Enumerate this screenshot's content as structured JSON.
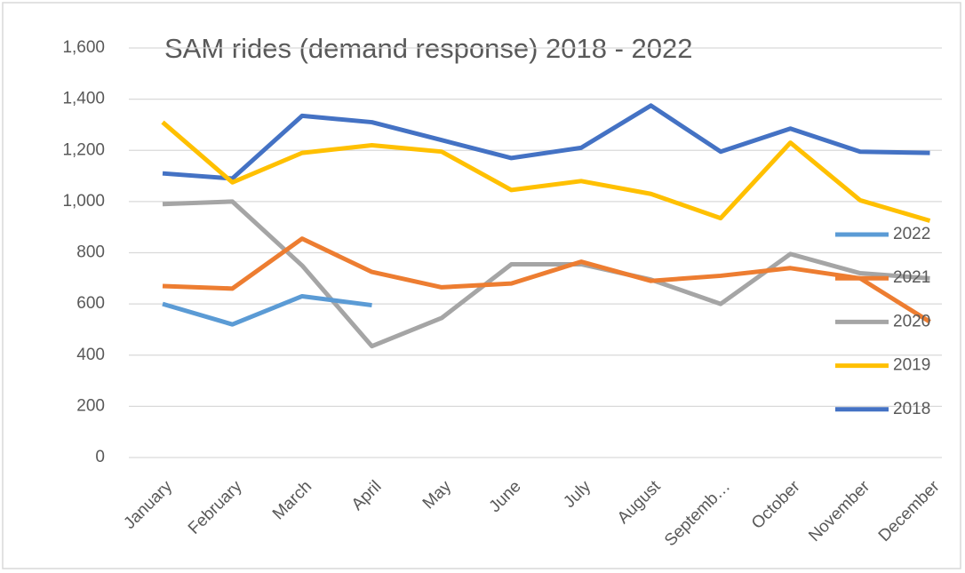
{
  "chart_data": {
    "type": "line",
    "title": "SAM rides (demand response)  2018 - 2022",
    "categories": [
      "January",
      "February",
      "March",
      "April",
      "May",
      "June",
      "July",
      "August",
      "Septemb…",
      "October",
      "November",
      "December"
    ],
    "series": [
      {
        "name": "2022",
        "color": "#5b9bd5",
        "values": [
          600,
          520,
          630,
          595,
          null,
          null,
          null,
          null,
          null,
          null,
          null,
          null
        ]
      },
      {
        "name": "2021",
        "color": "#ed7d31",
        "values": [
          670,
          660,
          855,
          725,
          665,
          680,
          765,
          690,
          710,
          740,
          700,
          530
        ]
      },
      {
        "name": "2020",
        "color": "#a5a5a5",
        "values": [
          990,
          1000,
          750,
          435,
          545,
          755,
          755,
          695,
          600,
          795,
          720,
          700
        ]
      },
      {
        "name": "2019",
        "color": "#ffc000",
        "values": [
          1310,
          1075,
          1190,
          1220,
          1195,
          1045,
          1080,
          1030,
          935,
          1230,
          1005,
          925
        ]
      },
      {
        "name": "2018",
        "color": "#4472c4",
        "values": [
          1110,
          1090,
          1335,
          1310,
          1240,
          1170,
          1210,
          1375,
          1195,
          1285,
          1195,
          1190
        ]
      }
    ],
    "ylim": [
      0,
      1600
    ],
    "yticks": [
      0,
      200,
      400,
      600,
      800,
      {
        "value": 1000,
        "label": "1,000"
      },
      {
        "value": 1200,
        "label": "1,200"
      },
      {
        "value": 1400,
        "label": "1,400"
      },
      {
        "value": 1600,
        "label": "1,600"
      }
    ],
    "grid": true,
    "legend": "right"
  }
}
